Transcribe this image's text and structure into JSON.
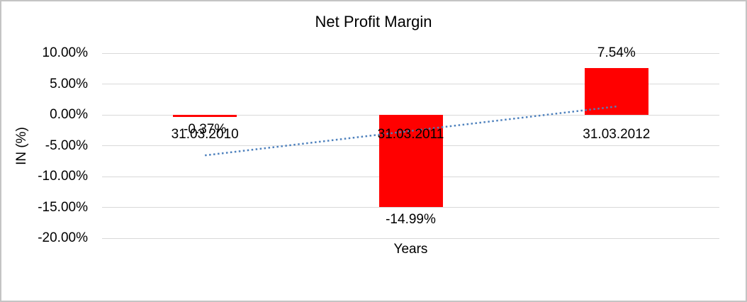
{
  "window": {
    "background_color": "#ffffff",
    "border_color": "#c4c4c4"
  },
  "chart_data": {
    "type": "bar",
    "title": "Net Profit Margin",
    "xlabel": "Years",
    "ylabel": "IN (%)",
    "categories": [
      "31.03.2010",
      "31.03.2011",
      "31.03.2012"
    ],
    "values": [
      -0.37,
      -14.99,
      7.54
    ],
    "value_labels": [
      "-0.37%",
      "-14.99%",
      "7.54%"
    ],
    "ylim": [
      -20,
      10
    ],
    "yticks": [
      10,
      5,
      0,
      -5,
      -10,
      -15,
      -20
    ],
    "ytick_labels": [
      "10.00%",
      "5.00%",
      "0.00%",
      "-5.00%",
      "-10.00%",
      "-15.00%",
      "-20.00%"
    ],
    "grid": true,
    "legend": false,
    "bar_color": "#ff0000",
    "gridline_color": "#d9d9d9",
    "text_color": "#000000",
    "trendline": {
      "type": "linear",
      "style": "dotted",
      "color": "#4e81bd",
      "start_pct": -6.57,
      "end_pct": 1.36
    }
  }
}
